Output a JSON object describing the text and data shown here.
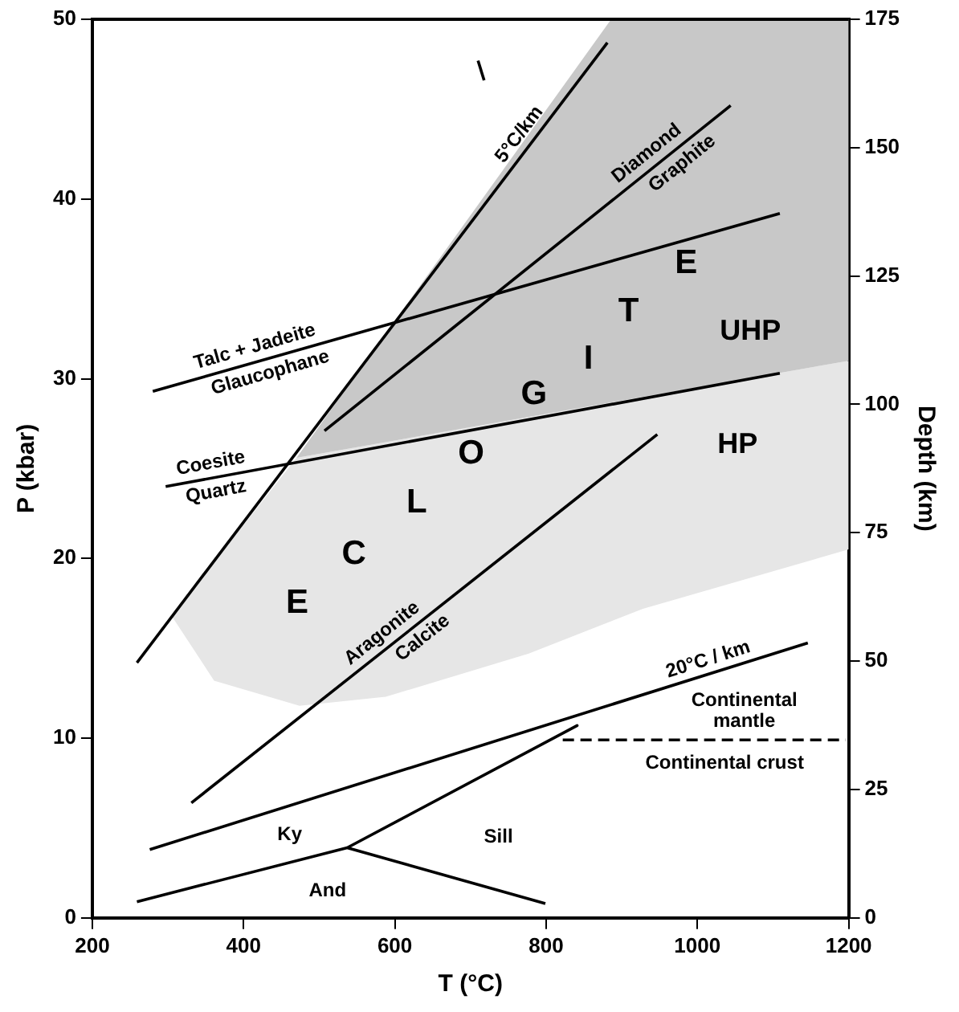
{
  "chart_data": {
    "type": "line",
    "xlabel": "T (°C)",
    "ylabel": "P (kbar)",
    "y2label": "Depth (km)",
    "xlim": [
      200,
      1200
    ],
    "xticks": [
      200,
      400,
      600,
      800,
      1000,
      1200
    ],
    "ylim": [
      0,
      50
    ],
    "yticks": [
      0,
      10,
      20,
      30,
      40,
      50
    ],
    "y2lim": [
      0,
      175
    ],
    "y2ticks": [
      0,
      25,
      50,
      75,
      100,
      125,
      150,
      175
    ],
    "grid": false,
    "legend": false,
    "marker": "none",
    "series": [
      {
        "type": "area",
        "color": "#c8c8c8",
        "x": [
          470,
          886,
          1200,
          1200
        ],
        "values": [
          25.6,
          50,
          50,
          31.0
        ]
      },
      {
        "type": "area",
        "color": "#e6e6e6",
        "x": [
          470,
          1200,
          1200,
          928,
          777,
          588,
          474,
          361,
          305
        ],
        "values": [
          25.6,
          31.0,
          20.5,
          17.2,
          14.7,
          12.3,
          11.8,
          13.2,
          16.8
        ]
      },
      {
        "type": "line",
        "color": "#000000",
        "x": [
          259,
          881
        ],
        "values": [
          14.2,
          48.7
        ]
      },
      {
        "type": "line",
        "color": "#000000",
        "x": [
          297,
          1109
        ],
        "values": [
          24.0,
          30.3
        ]
      },
      {
        "type": "line",
        "color": "#000000",
        "x": [
          280,
          1109
        ],
        "values": [
          29.3,
          39.2
        ]
      },
      {
        "type": "line",
        "color": "#000000",
        "x": [
          507,
          1044
        ],
        "values": [
          27.1,
          45.2
        ]
      },
      {
        "type": "line",
        "color": "#000000",
        "x": [
          331,
          947
        ],
        "values": [
          6.4,
          26.9
        ]
      },
      {
        "type": "line",
        "color": "#000000",
        "x": [
          276,
          1146
        ],
        "values": [
          3.8,
          15.3
        ]
      },
      {
        "type": "line",
        "color": "#000000",
        "x": [
          259,
          537,
          841,
          537,
          799
        ],
        "values": [
          0.9,
          3.9,
          10.7,
          3.9,
          0.8
        ]
      },
      {
        "type": "line",
        "color": "#000000",
        "line_style": "dashed",
        "x": [
          822,
          1196
        ],
        "values": [
          9.9,
          9.9
        ]
      },
      {
        "type": "line",
        "color": "#000000",
        "x": [
          710,
          718
        ],
        "values": [
          47.7,
          46.6
        ]
      }
    ],
    "annotations": [
      {
        "text": "5°C/km",
        "x": 780,
        "y": 43.1
      },
      {
        "text": "Diamond",
        "x": 945,
        "y": 41.9
      },
      {
        "text": "Graphite",
        "x": 968,
        "y": 42.6
      },
      {
        "text": "Talc + Jadeite",
        "x": 420,
        "y": 31.0
      },
      {
        "text": "Glaucophane",
        "x": 430,
        "y": 31.1
      },
      {
        "text": "Coesite",
        "x": 360,
        "y": 24.5
      },
      {
        "text": "Quartz",
        "x": 360,
        "y": 24.5
      },
      {
        "text": "Aragonite",
        "x": 595,
        "y": 15.2
      },
      {
        "text": "Calcite",
        "x": 625,
        "y": 16.2
      },
      {
        "text": "20°C / km",
        "x": 1020,
        "y": 13.6
      },
      "Continental\nmantle",
      "Continental crust",
      "Ky",
      "Sill",
      "And",
      "UHP",
      "HP",
      "E",
      "C",
      "L",
      "O",
      "G",
      "I",
      "T",
      "E"
    ]
  }
}
